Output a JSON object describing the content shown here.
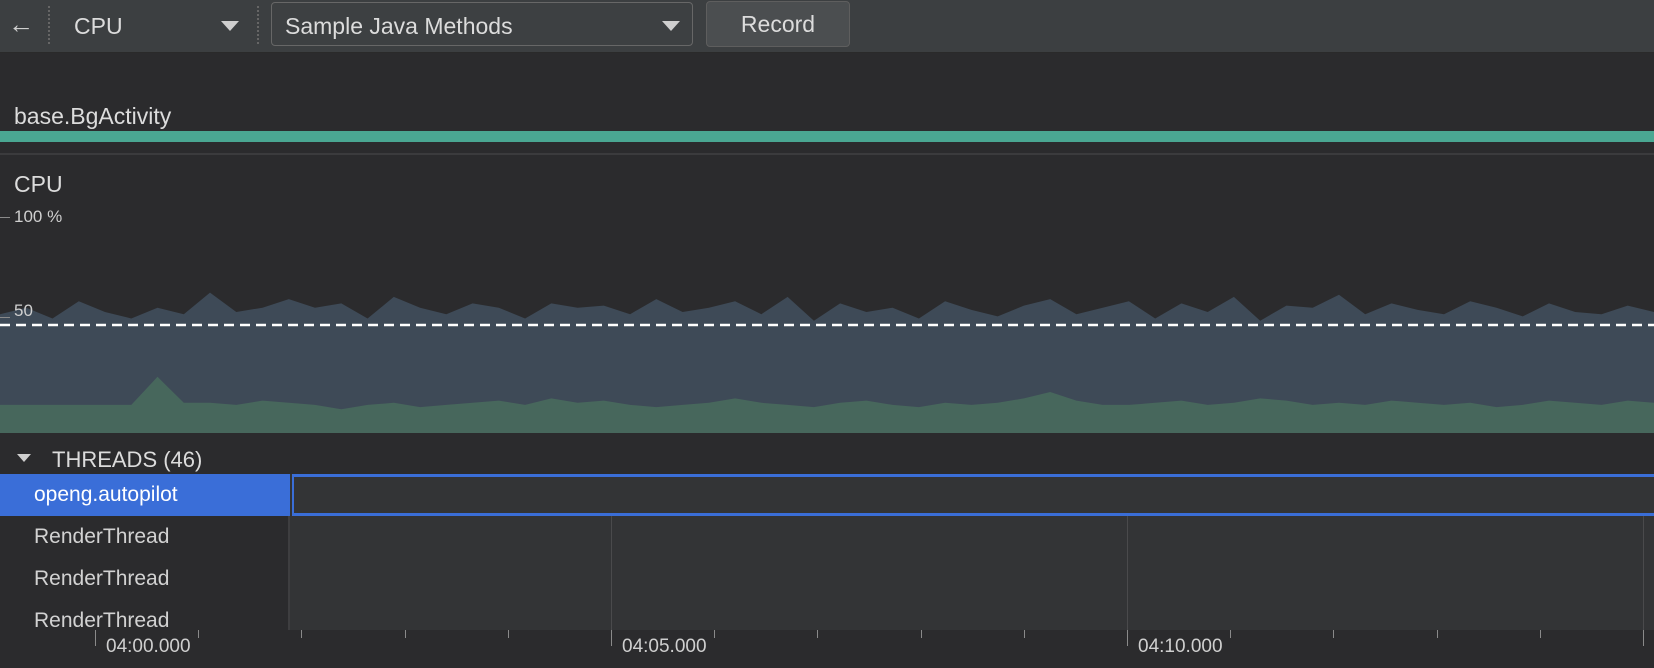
{
  "toolbar": {
    "back_icon": "arrow-left-icon",
    "monitor_select": "CPU",
    "config_select": "Sample Java Methods",
    "record_label": "Record"
  },
  "activity": {
    "label": "base.BgActivity",
    "bar_color": "#4aa792"
  },
  "cpu": {
    "title": "CPU",
    "y_top_label": "100 %",
    "y_mid_label": "50"
  },
  "chart_data": {
    "type": "area",
    "title": "CPU",
    "ylim": [
      0,
      100
    ],
    "y_ticks": [
      "100 %",
      "50"
    ],
    "threshold": 50,
    "x_count": 64,
    "series": [
      {
        "name": "",
        "color": "#3e4a57",
        "values": [
          55,
          58,
          53,
          61,
          56,
          53,
          58,
          55,
          65,
          56,
          58,
          62,
          58,
          60,
          53,
          63,
          58,
          55,
          60,
          58,
          53,
          60,
          58,
          59,
          55,
          62,
          56,
          58,
          61,
          55,
          63,
          52,
          60,
          56,
          58,
          53,
          61,
          57,
          54,
          59,
          62,
          55,
          58,
          61,
          53,
          60,
          56,
          63,
          52,
          59,
          58,
          64,
          55,
          60,
          57,
          55,
          61,
          58,
          54,
          60,
          56,
          55,
          59,
          56
        ]
      },
      {
        "name": "",
        "color": "#47675c",
        "values": [
          13,
          13,
          13,
          13,
          13,
          13,
          26,
          14,
          14,
          13,
          15,
          14,
          13,
          11,
          13,
          14,
          12,
          13,
          14,
          15,
          13,
          16,
          14,
          15,
          13,
          12,
          13,
          14,
          16,
          14,
          13,
          12,
          14,
          15,
          13,
          12,
          14,
          13,
          14,
          16,
          19,
          15,
          13,
          13,
          14,
          15,
          13,
          14,
          16,
          15,
          13,
          14,
          13,
          15,
          14,
          13,
          14,
          12,
          13,
          15,
          14,
          13,
          15,
          14
        ]
      }
    ]
  },
  "threads": {
    "header": "THREADS (46)",
    "rows": [
      {
        "name": "openg.autopilot",
        "selected": true
      },
      {
        "name": "RenderThread",
        "selected": false
      },
      {
        "name": "RenderThread",
        "selected": false
      },
      {
        "name": "RenderThread",
        "selected": false
      }
    ]
  },
  "timeline": {
    "labels": [
      "04:00.000",
      "04:05.000",
      "04:10.000"
    ]
  },
  "colors": {
    "selection": "#3a6ed8",
    "background": "#2b2b2d",
    "toolbar": "#3c3f41"
  }
}
